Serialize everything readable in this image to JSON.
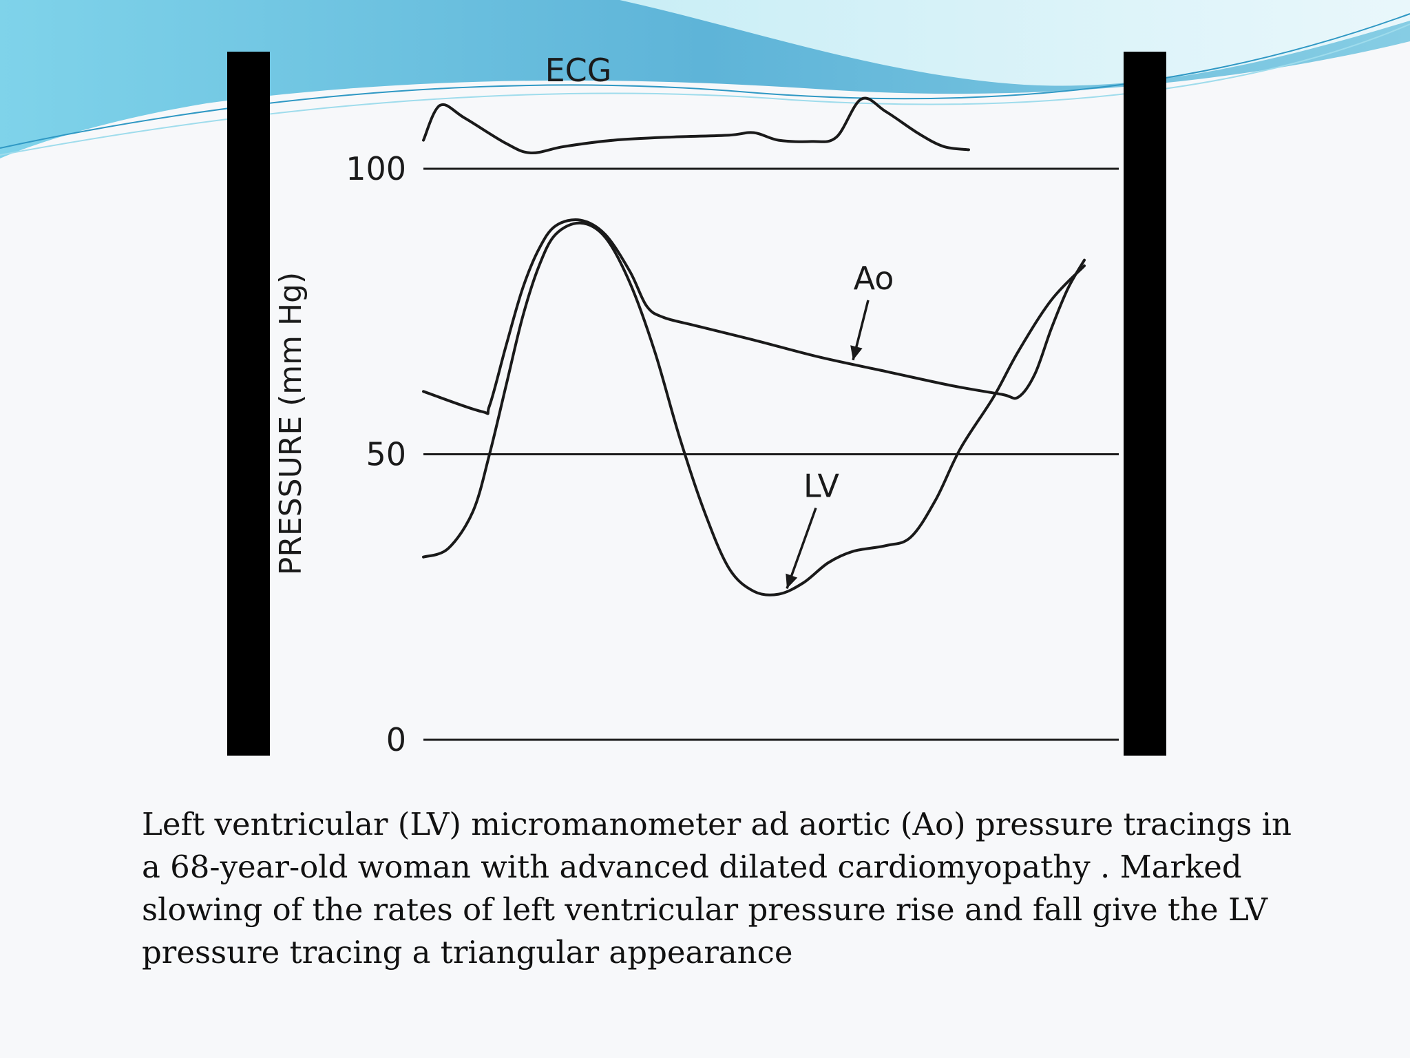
{
  "slide": {
    "caption": "Left ventricular (LV) micromanometer ad aortic (Ao) pressure tracings in a 68-year-old woman with advanced dilated cardiomyopathy . Marked slowing of the rates of left ventricular pressure rise and fall give the LV pressure tracing a triangular appearance",
    "theme_colors": {
      "wave_light": "#b9e6f2",
      "wave_mid": "#7fc6de",
      "wave_dark": "#4fa9cc",
      "ink": "#111111"
    }
  },
  "chart_data": {
    "type": "line",
    "title": "",
    "ylabel": "PRESSURE (mm Hg)",
    "xlabel": "",
    "ylim": [
      0,
      100
    ],
    "yticks": [
      0,
      50,
      100
    ],
    "gridlines": [
      0,
      50,
      100
    ],
    "x_unit": "relative time (fraction of one cardiac cycle shown)",
    "ecg_label": "ECG",
    "series": [
      {
        "name": "Ao",
        "points": [
          [
            0.0,
            61.0
          ],
          [
            0.07,
            57.5
          ],
          [
            0.08,
            58.5
          ],
          [
            0.1,
            69.0
          ],
          [
            0.12,
            79.0
          ],
          [
            0.14,
            86.0
          ],
          [
            0.16,
            90.0
          ],
          [
            0.19,
            91.0
          ],
          [
            0.22,
            88.5
          ],
          [
            0.25,
            82.0
          ],
          [
            0.27,
            76.0
          ],
          [
            0.29,
            74.0
          ],
          [
            0.33,
            72.5
          ],
          [
            0.4,
            70.0
          ],
          [
            0.48,
            67.0
          ],
          [
            0.56,
            64.5
          ],
          [
            0.64,
            62.0
          ],
          [
            0.7,
            60.5
          ],
          [
            0.72,
            60.0
          ],
          [
            0.74,
            64.0
          ],
          [
            0.76,
            72.0
          ],
          [
            0.78,
            79.0
          ],
          [
            0.8,
            84.0
          ]
        ]
      },
      {
        "name": "LV",
        "points": [
          [
            0.0,
            32.0
          ],
          [
            0.03,
            33.5
          ],
          [
            0.06,
            40.0
          ],
          [
            0.08,
            50.0
          ],
          [
            0.1,
            62.0
          ],
          [
            0.12,
            74.0
          ],
          [
            0.14,
            83.0
          ],
          [
            0.16,
            88.5
          ],
          [
            0.19,
            90.5
          ],
          [
            0.22,
            88.0
          ],
          [
            0.25,
            80.0
          ],
          [
            0.28,
            68.0
          ],
          [
            0.31,
            53.0
          ],
          [
            0.34,
            40.0
          ],
          [
            0.37,
            30.0
          ],
          [
            0.4,
            26.0
          ],
          [
            0.43,
            25.5
          ],
          [
            0.46,
            27.5
          ],
          [
            0.49,
            31.0
          ],
          [
            0.52,
            33.0
          ],
          [
            0.56,
            34.0
          ],
          [
            0.59,
            35.5
          ],
          [
            0.62,
            42.0
          ],
          [
            0.65,
            51.0
          ],
          [
            0.69,
            60.0
          ],
          [
            0.72,
            68.0
          ],
          [
            0.76,
            77.0
          ],
          [
            0.8,
            83.0
          ]
        ]
      }
    ],
    "ecg_trace": [
      [
        0.0,
        0.2
      ],
      [
        0.02,
        0.75
      ],
      [
        0.05,
        0.55
      ],
      [
        0.1,
        0.15
      ],
      [
        0.13,
        0.0
      ],
      [
        0.17,
        0.1
      ],
      [
        0.23,
        0.2
      ],
      [
        0.3,
        0.25
      ],
      [
        0.37,
        0.28
      ],
      [
        0.4,
        0.32
      ],
      [
        0.43,
        0.2
      ],
      [
        0.47,
        0.18
      ],
      [
        0.5,
        0.25
      ],
      [
        0.53,
        0.85
      ],
      [
        0.56,
        0.65
      ],
      [
        0.6,
        0.3
      ],
      [
        0.63,
        0.1
      ],
      [
        0.66,
        0.05
      ]
    ],
    "annotations": [
      {
        "label": "Ao",
        "target_series": "Ao",
        "target_x": 0.52,
        "target_y": 66.0
      },
      {
        "label": "LV",
        "target_series": "LV",
        "target_x": 0.44,
        "target_y": 26.0
      }
    ]
  }
}
